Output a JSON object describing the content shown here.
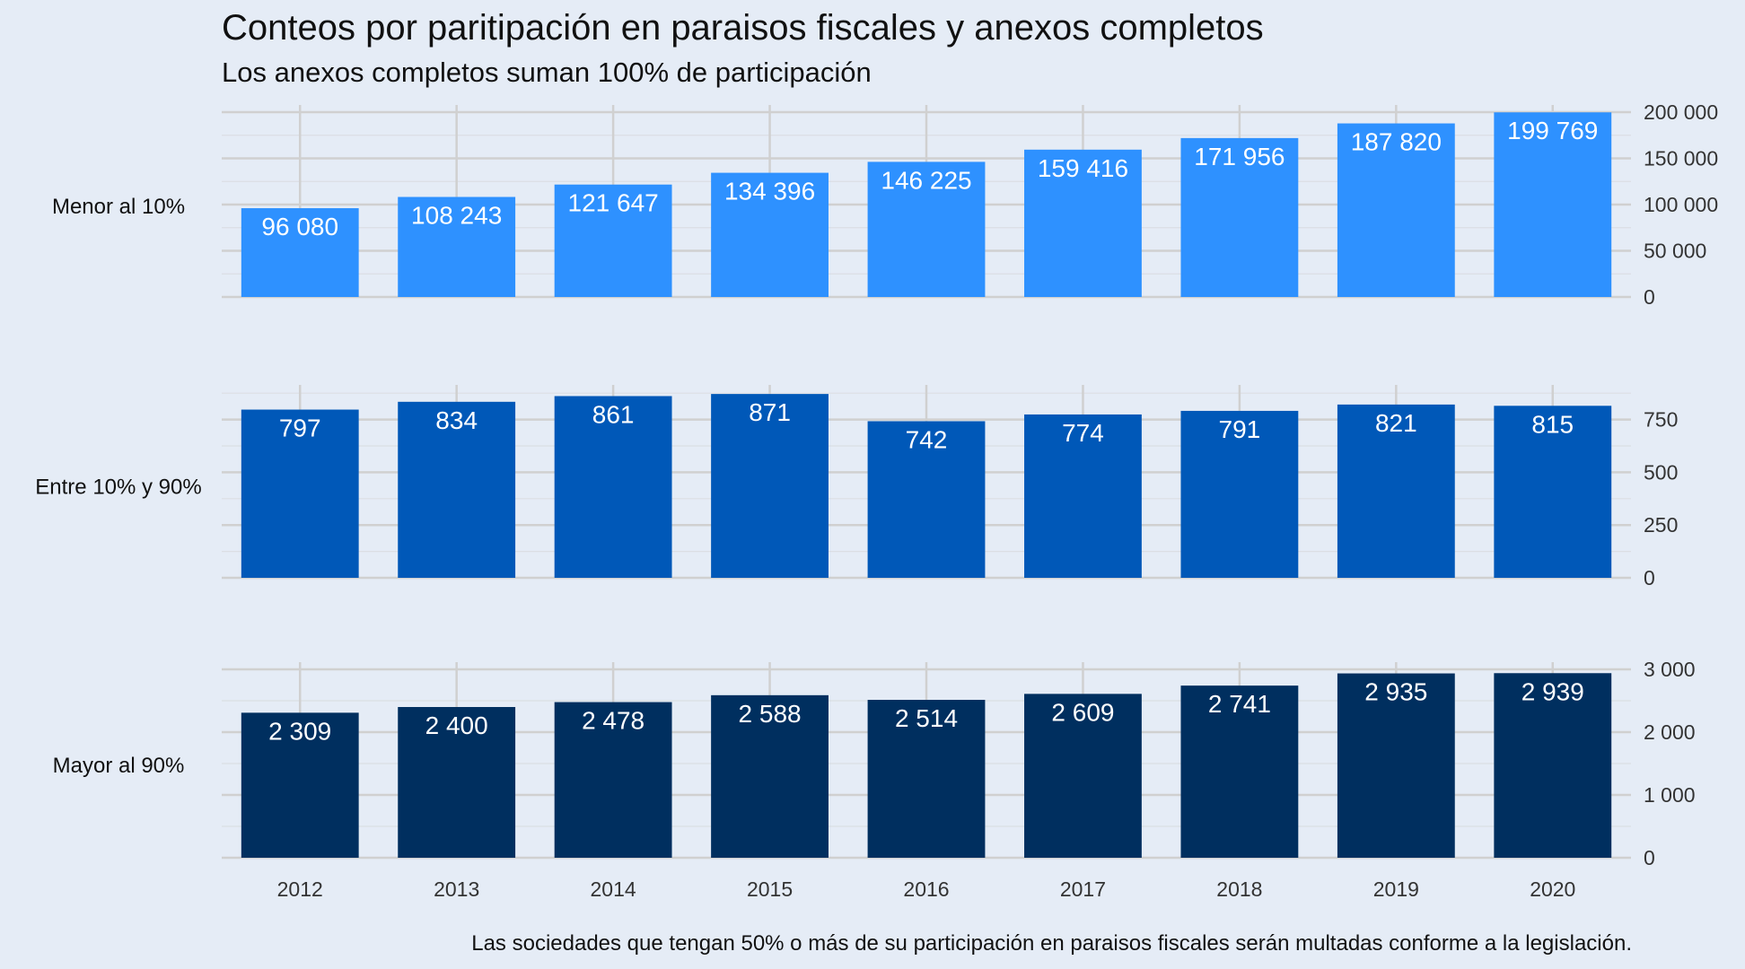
{
  "title": "Conteos por paritipación en paraisos fiscales y anexos completos",
  "subtitle": "Los anexos completos suman 100% de participación",
  "caption": "Las sociedades que tengan 50% o más de su participación en paraisos fiscales serán multadas conforme a la legislación.",
  "chart_data": {
    "type": "bar",
    "layout": "faceted rows, shared x axis at bottom, y axis on right",
    "categories": [
      "2012",
      "2013",
      "2014",
      "2015",
      "2016",
      "2017",
      "2018",
      "2019",
      "2020"
    ],
    "grid": true,
    "legend": "none",
    "facets": [
      {
        "name": "Menor al 10%",
        "color": "#2e91ff",
        "values": [
          96080,
          108243,
          121647,
          134396,
          146225,
          159416,
          171956,
          187820,
          199769
        ],
        "value_labels": [
          "96 080",
          "108 243",
          "121 647",
          "134 396",
          "146 225",
          "159 416",
          "171 956",
          "187 820",
          "199 769"
        ],
        "ylim": [
          0,
          200000
        ],
        "yticks": [
          0,
          50000,
          100000,
          150000,
          200000
        ],
        "ytick_labels": [
          "0",
          "50 000",
          "100 000",
          "150 000",
          "200 000"
        ]
      },
      {
        "name": "Entre 10% y 90%",
        "color": "#0058b8",
        "values": [
          797,
          834,
          861,
          871,
          742,
          774,
          791,
          821,
          815
        ],
        "value_labels": [
          "797",
          "834",
          "861",
          "871",
          "742",
          "774",
          "791",
          "821",
          "815"
        ],
        "ylim": [
          0,
          880
        ],
        "yticks": [
          0,
          250,
          500,
          750
        ],
        "ytick_labels": [
          "0",
          "250",
          "500",
          "750"
        ]
      },
      {
        "name": "Mayor al 90%",
        "color": "#002f5f",
        "values": [
          2309,
          2400,
          2478,
          2588,
          2514,
          2609,
          2741,
          2935,
          2939
        ],
        "value_labels": [
          "2 309",
          "2 400",
          "2 478",
          "2 588",
          "2 514",
          "2 609",
          "2 741",
          "2 935",
          "2 939"
        ],
        "ylim": [
          0,
          3000
        ],
        "yticks": [
          0,
          1000,
          2000,
          3000
        ],
        "ytick_labels": [
          "0",
          "1 000",
          "2 000",
          "3 000"
        ]
      }
    ]
  }
}
